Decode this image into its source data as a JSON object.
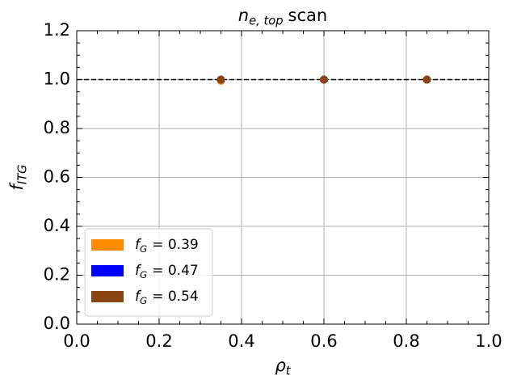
{
  "chart_data": {
    "type": "scatter",
    "title": "n",
    "title_subscript": "e, top",
    "title_suffix": "scan",
    "xlabel": "ρ",
    "xlabel_subscript": "t",
    "ylabel": "f",
    "ylabel_subscript": "ITG",
    "xlim": [
      0,
      1
    ],
    "ylim": [
      0,
      1.2
    ],
    "xticks": [
      {
        "value": 0,
        "label": "0.0"
      },
      0.2,
      0.4,
      0.6,
      0.8,
      {
        "value": 1,
        "label": "1.0"
      }
    ],
    "yticks": [
      {
        "value": 0,
        "label": "0.0"
      },
      0.2,
      0.4,
      0.6,
      0.8,
      {
        "value": 1,
        "label": "1.0"
      },
      1.2
    ],
    "xminor": 0.05,
    "yminor": 0.05,
    "grid": true,
    "legend": "lower left",
    "hline": 1,
    "x": [
      0.35,
      0.6,
      0.85
    ],
    "series": [
      {
        "name": "f",
        "name_subscript": "G",
        "name_suffix": "= 0.39",
        "color": "#ff8c00",
        "values": [
          0.995,
          1,
          1
        ]
      },
      {
        "name": "f",
        "name_subscript": "G",
        "name_suffix": "= 0.47",
        "color": "#0000ff",
        "values": [
          1,
          1,
          1
        ]
      },
      {
        "name": "f",
        "name_subscript": "G",
        "name_suffix": "= 0.54",
        "color": "#8b4513",
        "values": [
          1,
          1,
          1
        ]
      }
    ]
  }
}
